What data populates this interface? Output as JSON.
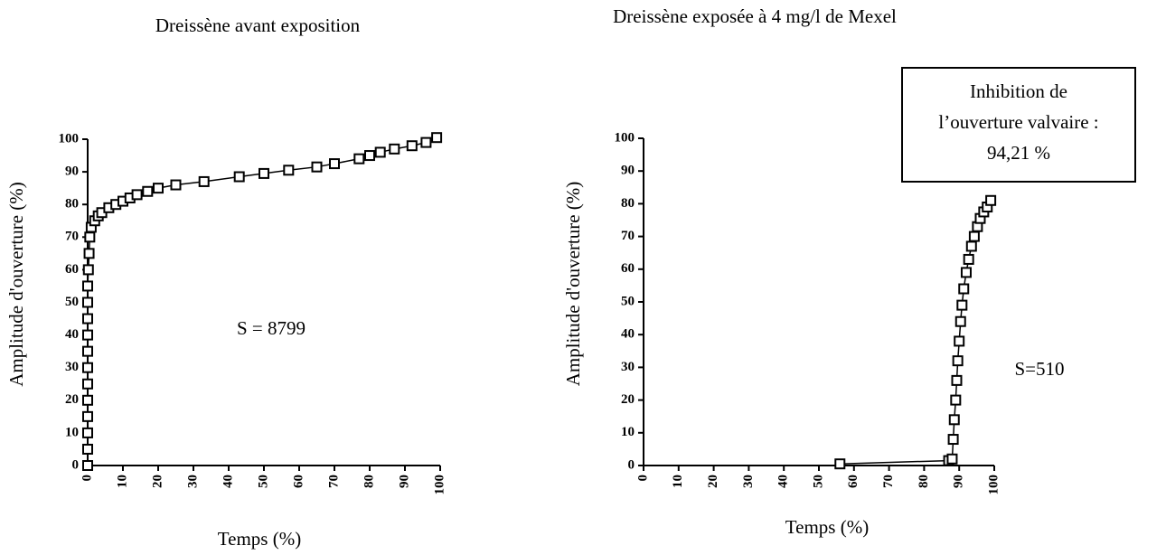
{
  "chart_data": [
    {
      "type": "line",
      "title": "Dreissène avant exposition",
      "x_label": "Temps (%)",
      "y_label": "Amplitude d'ouverture (%)",
      "color": "#000000",
      "x": [
        0,
        0,
        0,
        0,
        0,
        0,
        0,
        0,
        0,
        0,
        0,
        0,
        0.2,
        0.4,
        0.6,
        1,
        2,
        3,
        4,
        6,
        8,
        10,
        12,
        14,
        17,
        20,
        25,
        33,
        43,
        50,
        57,
        65,
        70,
        77,
        80,
        83,
        87,
        92,
        96,
        99
      ],
      "values": [
        0,
        5,
        10,
        15,
        20,
        25,
        30,
        35,
        40,
        45,
        50,
        55,
        60,
        65,
        70,
        73,
        75,
        76.5,
        77.5,
        79,
        80,
        81,
        82,
        83,
        84,
        85,
        86,
        87,
        88.5,
        89.5,
        90.5,
        91.5,
        92.5,
        94,
        95,
        96,
        97,
        98,
        99,
        100.5
      ],
      "xlim": [
        0,
        100
      ],
      "ylim": [
        0,
        100
      ],
      "xticks": [
        0,
        10,
        20,
        30,
        40,
        50,
        60,
        70,
        80,
        90,
        100
      ],
      "yticks": [
        0,
        10,
        20,
        30,
        40,
        50,
        60,
        70,
        80,
        90,
        100
      ],
      "annotations": [
        "S = 8799"
      ]
    },
    {
      "type": "line",
      "title": "Dreissène exposée à 4 mg/l de Mexel",
      "x_label": "Temps (%)",
      "y_label": "Amplitude d'ouverture (%)",
      "color": "#000000",
      "x": [
        56,
        87,
        88,
        88.3,
        88.6,
        89,
        89.3,
        89.6,
        90,
        90.4,
        90.8,
        91.3,
        92,
        92.7,
        93.5,
        94.3,
        95.2,
        96,
        97,
        98,
        99
      ],
      "values": [
        0.5,
        1.5,
        2,
        8,
        14,
        20,
        26,
        32,
        38,
        44,
        49,
        54,
        59,
        63,
        67,
        70,
        73,
        75.5,
        77.5,
        79,
        81
      ],
      "xlim": [
        0,
        100
      ],
      "ylim": [
        0,
        100
      ],
      "xticks": [
        0,
        10,
        20,
        30,
        40,
        50,
        60,
        70,
        80,
        90,
        100
      ],
      "yticks": [
        0,
        10,
        20,
        30,
        40,
        50,
        60,
        70,
        80,
        90,
        100
      ],
      "annotations": [
        "S=510"
      ],
      "box": [
        "Inhibition de",
        "l’ouverture valvaire :",
        "94,21 %"
      ]
    }
  ]
}
